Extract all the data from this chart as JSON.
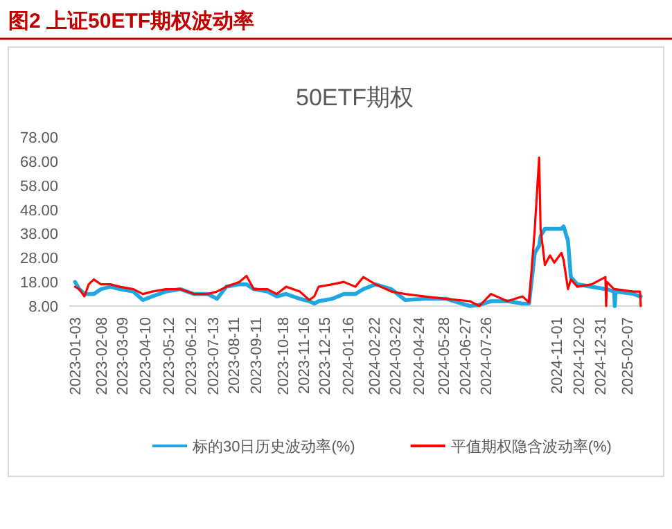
{
  "chart_data": {
    "type": "line",
    "title": "图2 上证50ETF期权波动率",
    "subtitle": "50ETF期权",
    "x": [
      "2023-01-03",
      "2023-01-09",
      "2023-01-16",
      "2023-01-22",
      "2023-01-29",
      "2023-02-08",
      "2023-02-21",
      "2023-03-06",
      "2023-03-25",
      "2023-04-07",
      "2023-04-20",
      "2023-05-09",
      "2023-05-29",
      "2023-06-17",
      "2023-07-06",
      "2023-07-19",
      "2023-08-01",
      "2023-08-19",
      "2023-08-29",
      "2023-09-08",
      "2023-09-27",
      "2023-10-10",
      "2023-10-23",
      "2023-11-11",
      "2023-11-24",
      "2023-12-01",
      "2023-12-07",
      "2023-12-26",
      "2024-01-11",
      "2024-01-27",
      "2024-02-07",
      "2024-02-24",
      "2024-03-17",
      "2024-04-05",
      "2024-05-02",
      "2024-06-01",
      "2024-07-04",
      "2024-07-17",
      "2024-08-02",
      "2024-08-25",
      "2024-09-15",
      "2024-09-24",
      "2024-10-02",
      "2024-10-08",
      "2024-10-10",
      "2024-10-16",
      "2024-10-23",
      "2024-10-29",
      "2024-11-08",
      "2024-11-11",
      "2024-11-17",
      "2024-11-21",
      "2024-11-30",
      "2024-12-20",
      "2025-01-08",
      "2025-01-09",
      "2025-01-10",
      "2025-01-20",
      "2025-01-21",
      "2025-01-22",
      "2025-02-16",
      "2025-02-25",
      "2025-02-26"
    ],
    "series": [
      {
        "name": "标的30日历史波动率(%)",
        "color": "#1fa8e0",
        "values": [
          18,
          15,
          13,
          13,
          13,
          15,
          16,
          15,
          14,
          10.5,
          12,
          14,
          15,
          13,
          13,
          11,
          16,
          17,
          17,
          15,
          14,
          12,
          13,
          11,
          10,
          9,
          10,
          11,
          13,
          13,
          15,
          17,
          15,
          10.5,
          11,
          11,
          8,
          8.5,
          10,
          10,
          9,
          9,
          30,
          33,
          37,
          40,
          40,
          40,
          40,
          41,
          35,
          20,
          17,
          16,
          15,
          15,
          15,
          14,
          8,
          14,
          13,
          12,
          12
        ]
      },
      {
        "name": "平值期权隐含波动率(%)",
        "color": "#ff0000",
        "values": [
          16,
          15,
          12,
          17,
          19,
          17,
          17,
          16,
          15,
          13,
          14,
          15,
          15,
          13,
          13,
          14,
          16,
          18,
          20.5,
          15,
          15,
          13,
          16,
          14,
          10.5,
          12,
          16,
          17,
          18,
          16,
          20,
          17,
          14,
          13,
          12,
          11,
          10,
          8,
          13,
          10,
          12,
          9.5,
          40,
          69.5,
          40,
          25,
          29,
          26,
          30,
          27,
          15,
          19,
          16,
          17,
          20,
          8,
          18,
          15,
          15,
          15,
          14,
          14,
          8
        ]
      }
    ],
    "xlim": [
      "2022-12-26",
      "2025-03-01"
    ],
    "xticks": [
      "2023-01-03",
      "2023-02-08",
      "2023-03-09",
      "2023-04-10",
      "2023-05-12",
      "2023-06-12",
      "2023-07-13",
      "2023-08-11",
      "2023-09-11",
      "2023-10-18",
      "2023-11-16",
      "2023-12-15",
      "2024-01-16",
      "2024-02-22",
      "2024-03-22",
      "2024-04-24",
      "2024-05-28",
      "2024-06-27",
      "2024-07-26",
      "2024-11-01",
      "2024-12-02",
      "2024-12-31",
      "2025-02-07"
    ],
    "ylim": [
      8,
      78
    ],
    "yticks": [
      {
        "value": 8,
        "label": "8.00"
      },
      {
        "value": 18,
        "label": "18.00"
      },
      {
        "value": 28,
        "label": "28.00"
      },
      {
        "value": 38,
        "label": "38.00"
      },
      {
        "value": 48,
        "label": "48.00"
      },
      {
        "value": 58,
        "label": "58.00"
      },
      {
        "value": 68,
        "label": "68.00"
      },
      {
        "value": 78,
        "label": "78.00"
      }
    ],
    "legend": "bottom"
  }
}
